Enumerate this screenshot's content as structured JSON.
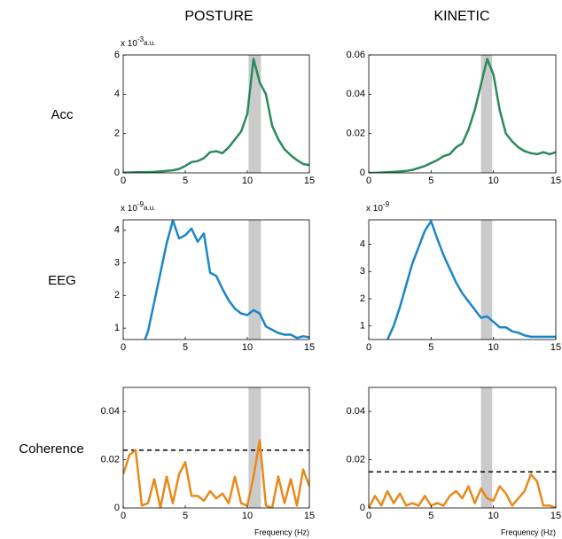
{
  "figure": {
    "column_titles": [
      "POSTURE",
      "KINETIC"
    ],
    "row_labels": [
      "Acc",
      "EEG",
      "Coherence"
    ]
  },
  "chart_data": [
    {
      "type": "line",
      "y_multiplier": {
        "base": "x 10",
        "exponent": "-3",
        "unit": "a.u."
      },
      "x": [
        0,
        0.5,
        1,
        1.5,
        2,
        2.5,
        3,
        3.5,
        4,
        4.5,
        5,
        5.5,
        6,
        6.5,
        7,
        7.5,
        8,
        8.5,
        9,
        9.5,
        10,
        10.5,
        11,
        11.5,
        12,
        12.5,
        13,
        13.5,
        14,
        14.5,
        15
      ],
      "series": [
        {
          "color": "#2b8a5c",
          "values": [
            0.02,
            0.02,
            0.03,
            0.03,
            0.04,
            0.05,
            0.07,
            0.1,
            0.13,
            0.2,
            0.35,
            0.55,
            0.6,
            0.75,
            1.05,
            1.1,
            1.0,
            1.3,
            1.7,
            2.1,
            3.0,
            5.8,
            4.6,
            4.0,
            2.4,
            1.7,
            1.2,
            0.9,
            0.65,
            0.45,
            0.4
          ]
        }
      ],
      "shaded_band": [
        10.1,
        11.1
      ],
      "xlim": [
        0,
        15
      ],
      "xticks": [
        0,
        5,
        10,
        15
      ],
      "ylim": [
        0,
        6
      ],
      "yticks": [
        0,
        2,
        4,
        6
      ]
    },
    {
      "type": "line",
      "x": [
        0,
        0.5,
        1,
        1.5,
        2,
        2.5,
        3,
        3.5,
        4,
        4.5,
        5,
        5.5,
        6,
        6.5,
        7,
        7.5,
        8,
        8.5,
        9,
        9.5,
        10,
        10.5,
        11,
        11.5,
        12,
        12.5,
        13,
        13.5,
        14,
        14.5,
        15
      ],
      "series": [
        {
          "color": "#2b8a5c",
          "values": [
            0,
            0,
            0.0002,
            0.0003,
            0.0005,
            0.0007,
            0.001,
            0.0015,
            0.0025,
            0.0035,
            0.005,
            0.0065,
            0.0085,
            0.0095,
            0.013,
            0.015,
            0.022,
            0.032,
            0.045,
            0.058,
            0.05,
            0.032,
            0.02,
            0.016,
            0.013,
            0.011,
            0.01,
            0.0095,
            0.0105,
            0.0095,
            0.0105
          ]
        }
      ],
      "shaded_band": [
        9,
        9.9
      ],
      "xlim": [
        0,
        15
      ],
      "xticks": [
        0,
        5,
        10,
        15
      ],
      "ylim": [
        0,
        0.06
      ],
      "yticks": [
        0,
        0.02,
        0.04,
        0.06
      ]
    },
    {
      "type": "line",
      "y_multiplier": {
        "base": "x 10",
        "exponent": "-9",
        "unit": "a.u."
      },
      "x": [
        1.75,
        2,
        2.5,
        3,
        3.5,
        4,
        4.5,
        5,
        5.5,
        6,
        6.5,
        7,
        7.5,
        8,
        8.5,
        9,
        9.5,
        10,
        10.5,
        11,
        11.5,
        12,
        12.5,
        13,
        13.5,
        14,
        14.5,
        15
      ],
      "series": [
        {
          "color": "#1a86c8",
          "values": [
            0.65,
            0.9,
            1.8,
            2.7,
            3.6,
            4.3,
            3.75,
            3.85,
            4.05,
            3.65,
            3.9,
            2.7,
            2.6,
            2.2,
            1.85,
            1.6,
            1.45,
            1.4,
            1.55,
            1.45,
            1.05,
            0.95,
            0.85,
            0.8,
            0.8,
            0.7,
            0.75,
            0.72
          ]
        }
      ],
      "shaded_band": [
        10.1,
        11.1
      ],
      "xlim": [
        0,
        15
      ],
      "xticks": [
        0,
        5,
        10,
        15
      ],
      "ylim": [
        0.65,
        4.32
      ],
      "yticks": [
        1,
        2,
        3,
        4
      ]
    },
    {
      "type": "line",
      "y_multiplier": {
        "base": "x 10",
        "exponent": "-9"
      },
      "x": [
        1.5,
        2,
        2.5,
        3,
        3.5,
        4,
        4.5,
        5,
        5.5,
        6,
        6.5,
        7,
        7.5,
        8,
        8.5,
        9,
        9.5,
        10,
        10.5,
        11,
        11.5,
        12,
        12.5,
        13,
        13.5,
        14,
        14.5,
        15
      ],
      "series": [
        {
          "color": "#1a86c8",
          "values": [
            0.5,
            1.0,
            1.7,
            2.5,
            3.3,
            3.9,
            4.5,
            4.85,
            4.2,
            3.6,
            3.1,
            2.6,
            2.2,
            1.9,
            1.6,
            1.3,
            1.35,
            1.15,
            0.95,
            0.95,
            0.8,
            0.75,
            0.65,
            0.6,
            0.6,
            0.6,
            0.6,
            0.6
          ]
        }
      ],
      "shaded_band": [
        9,
        9.9
      ],
      "xlim": [
        0,
        15
      ],
      "xticks": [
        0,
        5,
        10,
        15
      ],
      "ylim": [
        0.5,
        4.9
      ],
      "yticks": [
        1,
        2,
        3,
        4
      ]
    },
    {
      "type": "line",
      "x_label": "Frequency (Hz)",
      "x": [
        0,
        0.5,
        1,
        1.5,
        2,
        2.5,
        3,
        3.5,
        4,
        4.5,
        5,
        5.5,
        6,
        6.5,
        7,
        7.5,
        8,
        8.5,
        9,
        9.5,
        10,
        10.5,
        11,
        11.5,
        12,
        12.5,
        13,
        13.5,
        14,
        14.5,
        15
      ],
      "series": [
        {
          "color": "#e8891a",
          "values": [
            0.014,
            0.022,
            0.024,
            0.001,
            0.002,
            0.012,
            0,
            0.013,
            0.002,
            0.014,
            0.019,
            0.005,
            0.005,
            0.003,
            0.007,
            0.004,
            0.006,
            0.002,
            0.013,
            0.002,
            0.001,
            0.013,
            0.028,
            0.001,
            0,
            0.013,
            0.002,
            0.012,
            0.001,
            0.016,
            0.009
          ]
        }
      ],
      "threshold": 0.024,
      "shaded_band": [
        10.1,
        11.1
      ],
      "xlim": [
        0,
        15
      ],
      "xticks": [
        0,
        5,
        10,
        15
      ],
      "ylim": [
        0,
        0.05
      ],
      "yticks": [
        0,
        0.02,
        0.04
      ]
    },
    {
      "type": "line",
      "x_label": "Frequency (Hz)",
      "x": [
        0,
        0.5,
        1,
        1.5,
        2,
        2.5,
        3,
        3.5,
        4,
        4.5,
        5,
        5.5,
        6,
        6.5,
        7,
        7.5,
        8,
        8.5,
        9,
        9.5,
        10,
        10.5,
        11,
        11.5,
        12,
        12.5,
        13,
        13.5,
        14,
        14.5,
        15
      ],
      "series": [
        {
          "color": "#e8891a",
          "values": [
            0,
            0.005,
            0.001,
            0.007,
            0.002,
            0.006,
            0.001,
            0.002,
            0.001,
            0.005,
            0.001,
            0.002,
            0.001,
            0.005,
            0.007,
            0.004,
            0.009,
            0.002,
            0.008,
            0.004,
            0.003,
            0.009,
            0.006,
            0.001,
            0.004,
            0.007,
            0.014,
            0.011,
            0.001,
            0.001,
            0
          ]
        }
      ],
      "threshold": 0.015,
      "shaded_band": [
        9,
        9.9
      ],
      "xlim": [
        0,
        15
      ],
      "xticks": [
        0,
        5,
        10,
        15
      ],
      "ylim": [
        0,
        0.05
      ],
      "yticks": [
        0,
        0.02,
        0.04
      ]
    }
  ]
}
